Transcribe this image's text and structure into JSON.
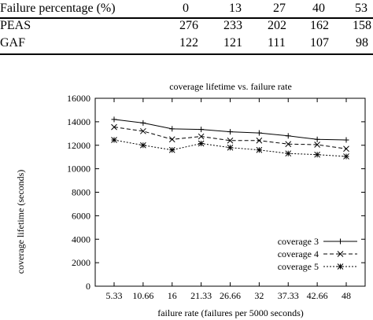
{
  "table": {
    "headers": [
      "Failure percentage (%)",
      "0",
      "13",
      "27",
      "40",
      "53"
    ],
    "rows": [
      {
        "label": "PEAS",
        "values": [
          "276",
          "233",
          "202",
          "162",
          "158"
        ]
      },
      {
        "label": "GAF",
        "values": [
          "122",
          "121",
          "111",
          "107",
          "98"
        ]
      }
    ]
  },
  "chart_data": {
    "type": "line",
    "title": "coverage lifetime vs. failure rate",
    "xlabel": "failure rate (failures per 5000 seconds)",
    "ylabel": "coverage lifetime (seconds)",
    "categories": [
      "5.33",
      "10.66",
      "16",
      "21.33",
      "26.66",
      "32",
      "37.33",
      "42.66",
      "48"
    ],
    "ylim": [
      0,
      16000
    ],
    "yticks": [
      "0",
      "2000",
      "4000",
      "6000",
      "8000",
      "10000",
      "12000",
      "14000",
      "16000"
    ],
    "grid": false,
    "legend_position": "bottom-right",
    "series": [
      {
        "name": "coverage 3",
        "marker": "plus",
        "dash": "solid",
        "color": "#000000",
        "values": [
          14200,
          13900,
          13400,
          13350,
          13150,
          13050,
          12800,
          12500,
          12450
        ]
      },
      {
        "name": "coverage 4",
        "marker": "cross",
        "dash": "dashed",
        "color": "#000000",
        "values": [
          13550,
          13200,
          12500,
          12750,
          12400,
          12400,
          12100,
          12050,
          11700
        ]
      },
      {
        "name": "coverage 5",
        "marker": "star",
        "dash": "dotted",
        "color": "#000000",
        "values": [
          12450,
          12000,
          11600,
          12150,
          11800,
          11600,
          11300,
          11200,
          11050
        ]
      }
    ]
  }
}
